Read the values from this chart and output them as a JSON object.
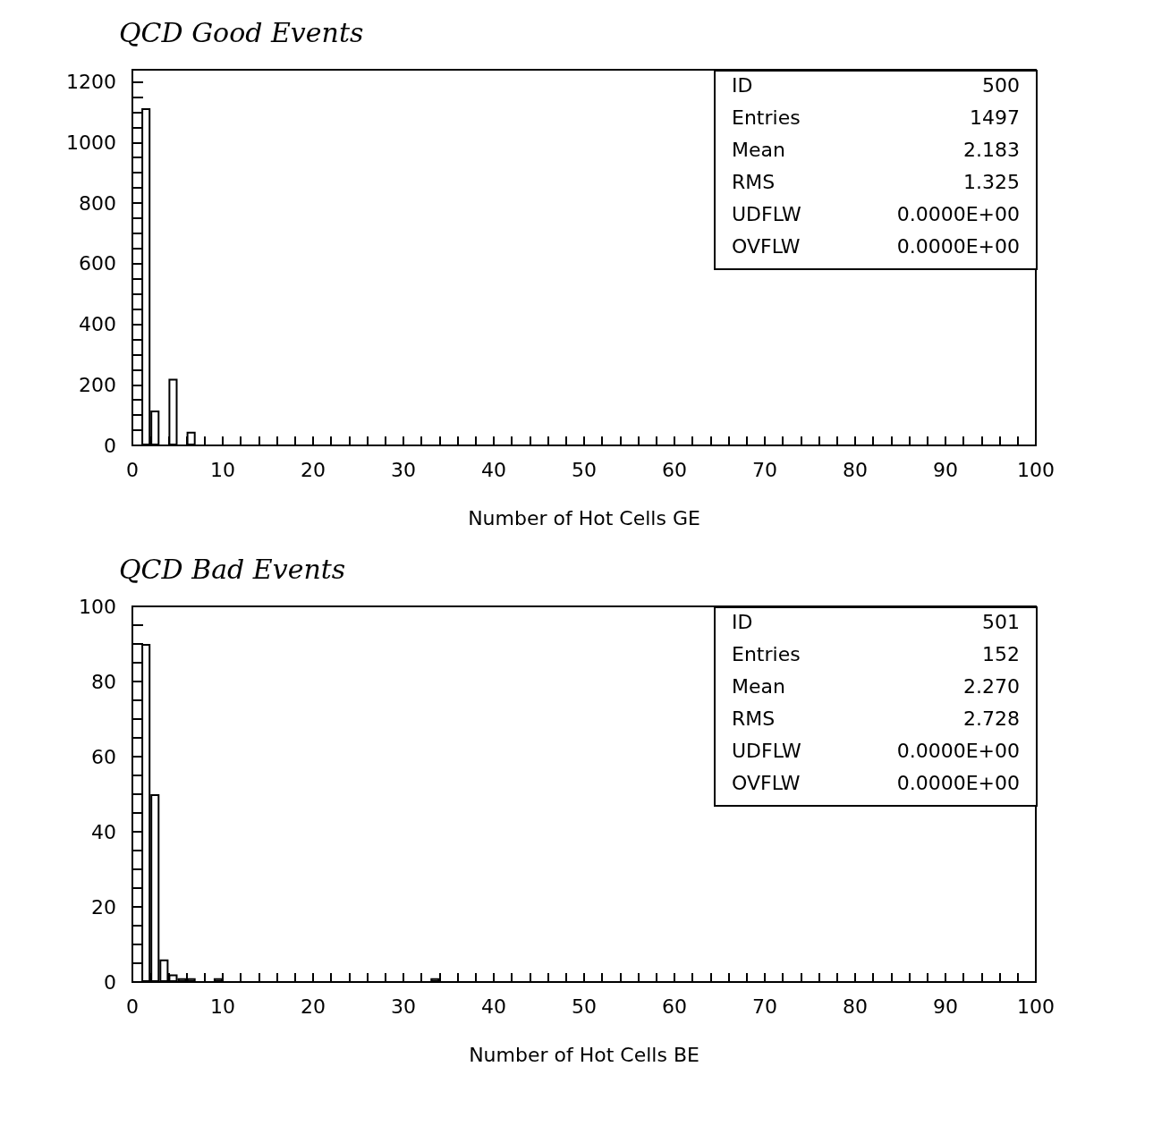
{
  "chart_data": [
    {
      "type": "histogram",
      "title": "QCD Good Events",
      "xlabel": "Number of Hot Cells GE",
      "bins": [
        0,
        1,
        2,
        3,
        4,
        5,
        6,
        7
      ],
      "values": [
        0,
        1113,
        115,
        0,
        220,
        0,
        45
      ],
      "color": "#000000",
      "xlim": [
        0,
        100
      ],
      "xticks": [
        0,
        {
          "value": 2,
          "label": null
        },
        {
          "value": 4,
          "label": null
        },
        {
          "value": 6,
          "label": null
        },
        {
          "value": 8,
          "label": null
        },
        10,
        {
          "value": 12,
          "label": null
        },
        {
          "value": 14,
          "label": null
        },
        {
          "value": 16,
          "label": null
        },
        {
          "value": 18,
          "label": null
        },
        20,
        {
          "value": 22,
          "label": null
        },
        {
          "value": 24,
          "label": null
        },
        {
          "value": 26,
          "label": null
        },
        {
          "value": 28,
          "label": null
        },
        30,
        {
          "value": 32,
          "label": null
        },
        {
          "value": 34,
          "label": null
        },
        {
          "value": 36,
          "label": null
        },
        {
          "value": 38,
          "label": null
        },
        40,
        {
          "value": 42,
          "label": null
        },
        {
          "value": 44,
          "label": null
        },
        {
          "value": 46,
          "label": null
        },
        {
          "value": 48,
          "label": null
        },
        50,
        {
          "value": 52,
          "label": null
        },
        {
          "value": 54,
          "label": null
        },
        {
          "value": 56,
          "label": null
        },
        {
          "value": 58,
          "label": null
        },
        60,
        {
          "value": 62,
          "label": null
        },
        {
          "value": 64,
          "label": null
        },
        {
          "value": 66,
          "label": null
        },
        {
          "value": 68,
          "label": null
        },
        70,
        {
          "value": 72,
          "label": null
        },
        {
          "value": 74,
          "label": null
        },
        {
          "value": 76,
          "label": null
        },
        {
          "value": 78,
          "label": null
        },
        80,
        {
          "value": 82,
          "label": null
        },
        {
          "value": 84,
          "label": null
        },
        {
          "value": 86,
          "label": null
        },
        {
          "value": 88,
          "label": null
        },
        90,
        {
          "value": 92,
          "label": null
        },
        {
          "value": 94,
          "label": null
        },
        {
          "value": 96,
          "label": null
        },
        {
          "value": 98,
          "label": null
        },
        100
      ],
      "ylim": [
        0,
        1240
      ],
      "yticks": [
        0,
        {
          "value": 50,
          "label": null
        },
        {
          "value": 100,
          "label": null
        },
        {
          "value": 150,
          "label": null
        },
        200,
        {
          "value": 250,
          "label": null
        },
        {
          "value": 300,
          "label": null
        },
        {
          "value": 350,
          "label": null
        },
        400,
        {
          "value": 450,
          "label": null
        },
        {
          "value": 500,
          "label": null
        },
        {
          "value": 550,
          "label": null
        },
        600,
        {
          "value": 650,
          "label": null
        },
        {
          "value": 700,
          "label": null
        },
        {
          "value": 750,
          "label": null
        },
        800,
        {
          "value": 850,
          "label": null
        },
        {
          "value": 900,
          "label": null
        },
        {
          "value": 950,
          "label": null
        },
        1000,
        {
          "value": 1050,
          "label": null
        },
        {
          "value": 1100,
          "label": null
        },
        {
          "value": 1150,
          "label": null
        },
        1200
      ],
      "grid": false,
      "annotations": [
        "ID",
        "500",
        "Entries",
        "1497",
        "Mean",
        "2.183",
        "RMS",
        "1.325",
        "UDFLW",
        "0.0000E+00",
        "OVFLW",
        "0.0000E+00"
      ]
    },
    {
      "type": "histogram",
      "title": "QCD Bad Events",
      "xlabel": "Number of Hot Cells BE",
      "bins": [
        0,
        1,
        2,
        3,
        4,
        5,
        6,
        7,
        8,
        9,
        10,
        11,
        12,
        13,
        14,
        15,
        16,
        17,
        18,
        19,
        20,
        21,
        22,
        23,
        24,
        25,
        26,
        27,
        28,
        29,
        30,
        31,
        32,
        33,
        34
      ],
      "values": [
        0,
        90,
        50,
        6,
        2,
        1,
        1,
        0,
        0,
        1,
        0,
        0,
        0,
        0,
        0,
        0,
        0,
        0,
        0,
        0,
        0,
        0,
        0,
        0,
        0,
        0,
        0,
        0,
        0,
        0,
        0,
        0,
        0,
        1
      ],
      "color": "#000000",
      "xlim": [
        0,
        100
      ],
      "xticks": [
        0,
        {
          "value": 2,
          "label": null
        },
        {
          "value": 4,
          "label": null
        },
        {
          "value": 6,
          "label": null
        },
        {
          "value": 8,
          "label": null
        },
        10,
        {
          "value": 12,
          "label": null
        },
        {
          "value": 14,
          "label": null
        },
        {
          "value": 16,
          "label": null
        },
        {
          "value": 18,
          "label": null
        },
        20,
        {
          "value": 22,
          "label": null
        },
        {
          "value": 24,
          "label": null
        },
        {
          "value": 26,
          "label": null
        },
        {
          "value": 28,
          "label": null
        },
        30,
        {
          "value": 32,
          "label": null
        },
        {
          "value": 34,
          "label": null
        },
        {
          "value": 36,
          "label": null
        },
        {
          "value": 38,
          "label": null
        },
        40,
        {
          "value": 42,
          "label": null
        },
        {
          "value": 44,
          "label": null
        },
        {
          "value": 46,
          "label": null
        },
        {
          "value": 48,
          "label": null
        },
        50,
        {
          "value": 52,
          "label": null
        },
        {
          "value": 54,
          "label": null
        },
        {
          "value": 56,
          "label": null
        },
        {
          "value": 58,
          "label": null
        },
        60,
        {
          "value": 62,
          "label": null
        },
        {
          "value": 64,
          "label": null
        },
        {
          "value": 66,
          "label": null
        },
        {
          "value": 68,
          "label": null
        },
        70,
        {
          "value": 72,
          "label": null
        },
        {
          "value": 74,
          "label": null
        },
        {
          "value": 76,
          "label": null
        },
        {
          "value": 78,
          "label": null
        },
        80,
        {
          "value": 82,
          "label": null
        },
        {
          "value": 84,
          "label": null
        },
        {
          "value": 86,
          "label": null
        },
        {
          "value": 88,
          "label": null
        },
        90,
        {
          "value": 92,
          "label": null
        },
        {
          "value": 94,
          "label": null
        },
        {
          "value": 96,
          "label": null
        },
        {
          "value": 98,
          "label": null
        },
        100
      ],
      "ylim": [
        0,
        100
      ],
      "yticks": [
        0,
        {
          "value": 5,
          "label": null
        },
        {
          "value": 10,
          "label": null
        },
        {
          "value": 15,
          "label": null
        },
        20,
        {
          "value": 25,
          "label": null
        },
        {
          "value": 30,
          "label": null
        },
        {
          "value": 35,
          "label": null
        },
        40,
        {
          "value": 45,
          "label": null
        },
        {
          "value": 50,
          "label": null
        },
        {
          "value": 55,
          "label": null
        },
        60,
        {
          "value": 65,
          "label": null
        },
        {
          "value": 70,
          "label": null
        },
        {
          "value": 75,
          "label": null
        },
        80,
        {
          "value": 85,
          "label": null
        },
        {
          "value": 90,
          "label": null
        },
        {
          "value": 95,
          "label": null
        },
        100
      ],
      "grid": false,
      "annotations": [
        "ID",
        "501",
        "Entries",
        "152",
        "Mean",
        "2.270",
        "RMS",
        "2.728",
        "UDFLW",
        "0.0000E+00",
        "OVFLW",
        "0.0000E+00"
      ]
    }
  ]
}
